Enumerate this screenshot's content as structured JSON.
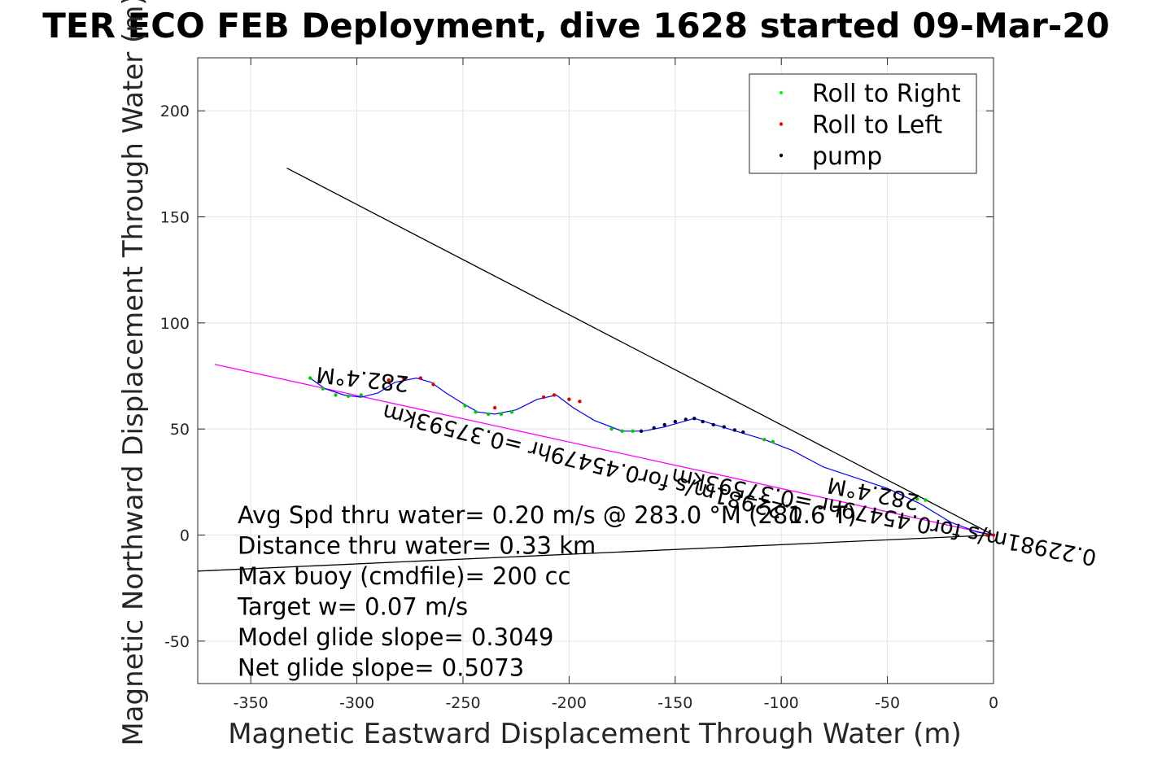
{
  "chart_data": {
    "type": "scatter",
    "title": "TER ECO FEB Deployment, dive 1628 started 09-Mar-20",
    "xlabel": "Magnetic Eastward Displacement Through Water (m)",
    "ylabel": "Magnetic Northward Displacement Through Water (m)",
    "xlim": [
      -375,
      0
    ],
    "ylim": [
      -70,
      225
    ],
    "xticks": [
      -350,
      -300,
      -250,
      -200,
      -150,
      -100,
      -50,
      0
    ],
    "yticks": [
      -50,
      0,
      50,
      100,
      150,
      200
    ],
    "grid": true,
    "legend_position": "top-right",
    "legend": [
      {
        "label": "Roll to Right",
        "color": "#00ff00"
      },
      {
        "label": "Roll to Left",
        "color": "#ff0000"
      },
      {
        "label": "pump",
        "color": "#000000"
      }
    ],
    "track": {
      "color": "#0000ff",
      "points": [
        [
          0,
          0
        ],
        [
          -8,
          1.5
        ],
        [
          -20,
          6
        ],
        [
          -35,
          15
        ],
        [
          -50,
          22
        ],
        [
          -65,
          27
        ],
        [
          -80,
          32
        ],
        [
          -95,
          40
        ],
        [
          -108,
          45
        ],
        [
          -118,
          48
        ],
        [
          -128,
          51
        ],
        [
          -141,
          55
        ],
        [
          -155,
          51
        ],
        [
          -165,
          49
        ],
        [
          -175,
          49
        ],
        [
          -188,
          54
        ],
        [
          -198,
          60
        ],
        [
          -206,
          66
        ],
        [
          -215,
          64
        ],
        [
          -225,
          59
        ],
        [
          -235,
          57
        ],
        [
          -243,
          58
        ],
        [
          -250,
          62
        ],
        [
          -258,
          67
        ],
        [
          -265,
          72
        ],
        [
          -272,
          74
        ],
        [
          -282,
          72
        ],
        [
          -290,
          67
        ],
        [
          -298,
          65
        ],
        [
          -306,
          66
        ],
        [
          -315,
          69
        ],
        [
          -322,
          74
        ]
      ]
    },
    "roll_right_points": [
      [
        -322,
        74
      ],
      [
        -316,
        69
      ],
      [
        -310,
        66
      ],
      [
        -304,
        65.5
      ],
      [
        -298,
        66
      ],
      [
        -249,
        61
      ],
      [
        -244,
        58
      ],
      [
        -238,
        57
      ],
      [
        -232,
        57
      ],
      [
        -227,
        58
      ],
      [
        -180,
        50
      ],
      [
        -175,
        49
      ],
      [
        -170,
        49
      ],
      [
        -108,
        45
      ],
      [
        -104,
        44
      ],
      [
        -36,
        17
      ],
      [
        -32,
        16.5
      ]
    ],
    "roll_left_points": [
      [
        -285,
        73
      ],
      [
        -278,
        74
      ],
      [
        -270,
        74
      ],
      [
        -264,
        71
      ],
      [
        -235,
        60
      ],
      [
        -212,
        65
      ],
      [
        -207,
        66
      ],
      [
        -200,
        64
      ],
      [
        -195,
        63
      ],
      [
        -3,
        0
      ],
      [
        0,
        0
      ]
    ],
    "pump_points": [
      [
        -166,
        49
      ],
      [
        -160,
        50.5
      ],
      [
        -155,
        52
      ],
      [
        -150,
        53.5
      ],
      [
        -145,
        54.5
      ],
      [
        -141,
        55
      ],
      [
        -137,
        53.5
      ],
      [
        -132,
        52
      ],
      [
        -127,
        51
      ],
      [
        -122,
        49.5
      ],
      [
        -118,
        48.5
      ]
    ],
    "lines": [
      {
        "name": "",
        "color": "#000000",
        "points": [
          [
            -333,
            173
          ],
          [
            0,
            0
          ]
        ]
      },
      {
        "name": "",
        "color": "#000000",
        "points": [
          [
            -375,
            -17
          ],
          [
            0,
            0
          ]
        ]
      },
      {
        "name": "",
        "color": "#ff00ff",
        "points": [
          [
            -367,
            80.5
          ],
          [
            0,
            0
          ]
        ]
      }
    ],
    "rotated_labels": [
      {
        "text": "282.4°M",
        "x": -297,
        "y": 77,
        "angle_deg": 186
      },
      {
        "text": "0.22981m/s for0.45479hr =0.37593km",
        "x": -188,
        "y": 37,
        "angle_deg": 194
      },
      {
        "text": "282.4°M",
        "x": -56,
        "y": 23,
        "angle_deg": 191
      },
      {
        "text": "0.22981m/s for0.45479hr =0.37593km",
        "x": -51,
        "y": 12,
        "angle_deg": 191
      }
    ],
    "annotations": [
      "Avg Spd thru water=  0.20 m/s @ 283.0  °M (281.6 T)",
      "Distance thru water=  0.33 km",
      "Max buoy (cmdfile)= 200 cc",
      "Target w= 0.07 m/s",
      "Model glide slope= 0.3049",
      "Net glide slope= 0.5073"
    ]
  }
}
